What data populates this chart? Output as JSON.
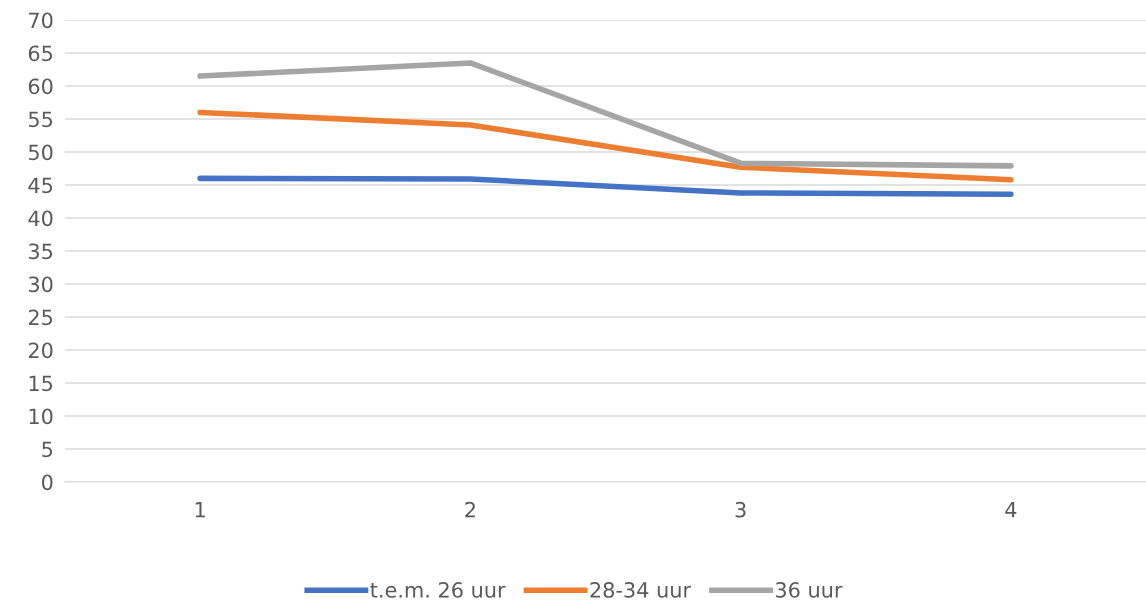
{
  "chart_data": {
    "type": "line",
    "categories": [
      "1",
      "2",
      "3",
      "4"
    ],
    "series": [
      {
        "name": "t.e.m. 26 uur",
        "color": "#4472c4",
        "values": [
          46.0,
          45.9,
          43.8,
          43.6
        ]
      },
      {
        "name": "28-34 uur",
        "color": "#ed7d31",
        "values": [
          56.0,
          54.1,
          47.7,
          45.8
        ]
      },
      {
        "name": "36 uur",
        "color": "#a5a5a5",
        "values": [
          61.5,
          63.5,
          48.3,
          47.9
        ]
      }
    ],
    "ylim": [
      0,
      70
    ],
    "yticks": [
      0,
      5,
      10,
      15,
      20,
      25,
      30,
      35,
      40,
      45,
      50,
      55,
      60,
      65,
      70
    ],
    "grid": "y",
    "legend": "bottom",
    "marker": "none",
    "line_style": "solid"
  }
}
